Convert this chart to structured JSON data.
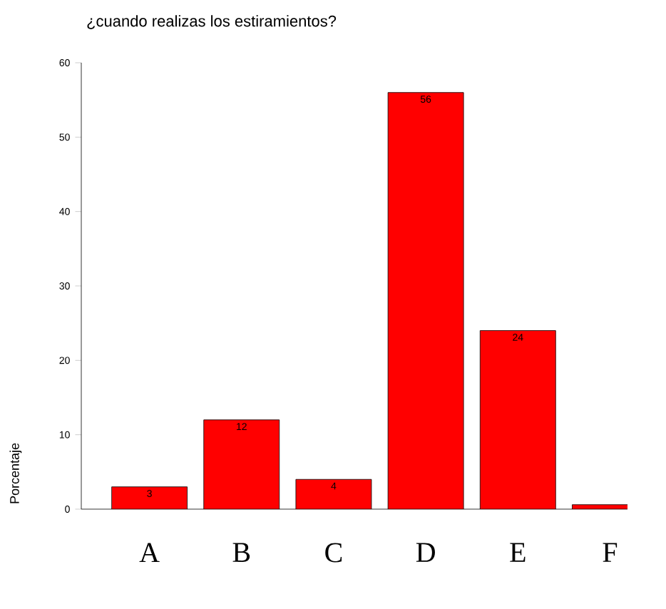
{
  "chart_data": {
    "type": "bar",
    "title": "¿cuando realizas los estiramientos?",
    "ylabel": "Porcentaje",
    "categories": [
      "A",
      "B",
      "C",
      "D",
      "E",
      "F"
    ],
    "values": [
      3,
      12,
      4,
      56,
      24,
      0.6
    ],
    "value_labels": [
      "3",
      "12",
      "4",
      "56",
      "24",
      null
    ],
    "color": "#ff0000",
    "ylim": [
      0,
      60
    ],
    "yticks": [
      0,
      10,
      20,
      30,
      40,
      50,
      60
    ],
    "grid": false
  }
}
